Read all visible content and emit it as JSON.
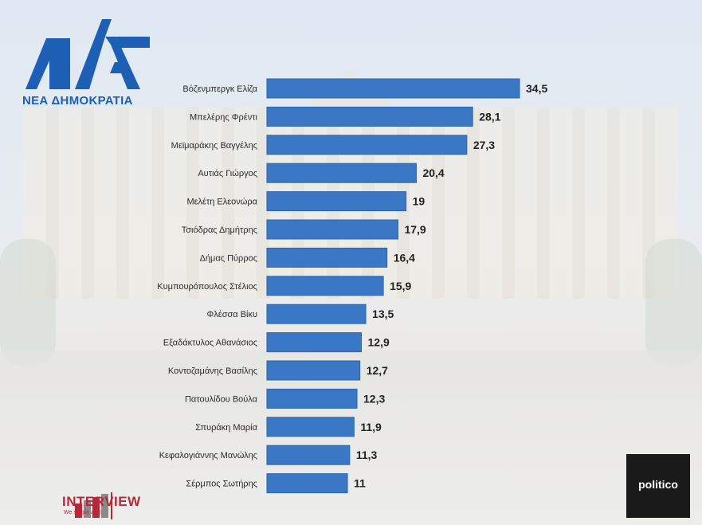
{
  "colors": {
    "bar": "#3a78c6",
    "bar_edge": "#2c63ad",
    "label": "#2b2b2b",
    "value": "#222222",
    "brand_blue": "#1c5fb5"
  },
  "branding": {
    "party_logo_text": "ΝΕΑ ΔΗΜΟΚΡΑΤΙΑ",
    "pollster_name": "INTERVIEW",
    "pollster_tagline": "We simply ask!",
    "media_logo": "politico"
  },
  "chart_data": {
    "type": "bar",
    "orientation": "horizontal",
    "categories": [
      "Βόζενμπεργκ Ελίζα",
      "Μπελέρης Φρέντι",
      "Μεϊμαράκης Βαγγέλης",
      "Αυτιάς Γιώργος",
      "Μελέτη Ελεονώρα",
      "Τσιόδρας Δημήτρης",
      "Δήμας Πύρρος",
      "Κυμπουρόπουλος Στέλιος",
      "Φλέσσα Βίκυ",
      "Εξαδάκτυλος Αθανάσιος",
      "Κοντοζαμάνης Βασίλης",
      "Πατουλίδου Βούλα",
      "Σπυράκη Μαρία",
      "Κεφαλογιάννης Μανώλης",
      "Σέρμπος Σωτήρης"
    ],
    "values": [
      34.5,
      28.1,
      27.3,
      20.4,
      19,
      17.9,
      16.4,
      15.9,
      13.5,
      12.9,
      12.7,
      12.3,
      11.9,
      11.3,
      11
    ],
    "value_labels": [
      "34,5",
      "28,1",
      "27,3",
      "20,4",
      "19",
      "17,9",
      "16,4",
      "15,9",
      "13,5",
      "12,9",
      "12,7",
      "12,3",
      "11,9",
      "11,3",
      "11"
    ],
    "xlim": [
      0,
      34.5
    ],
    "grid": false,
    "legend": "none"
  }
}
